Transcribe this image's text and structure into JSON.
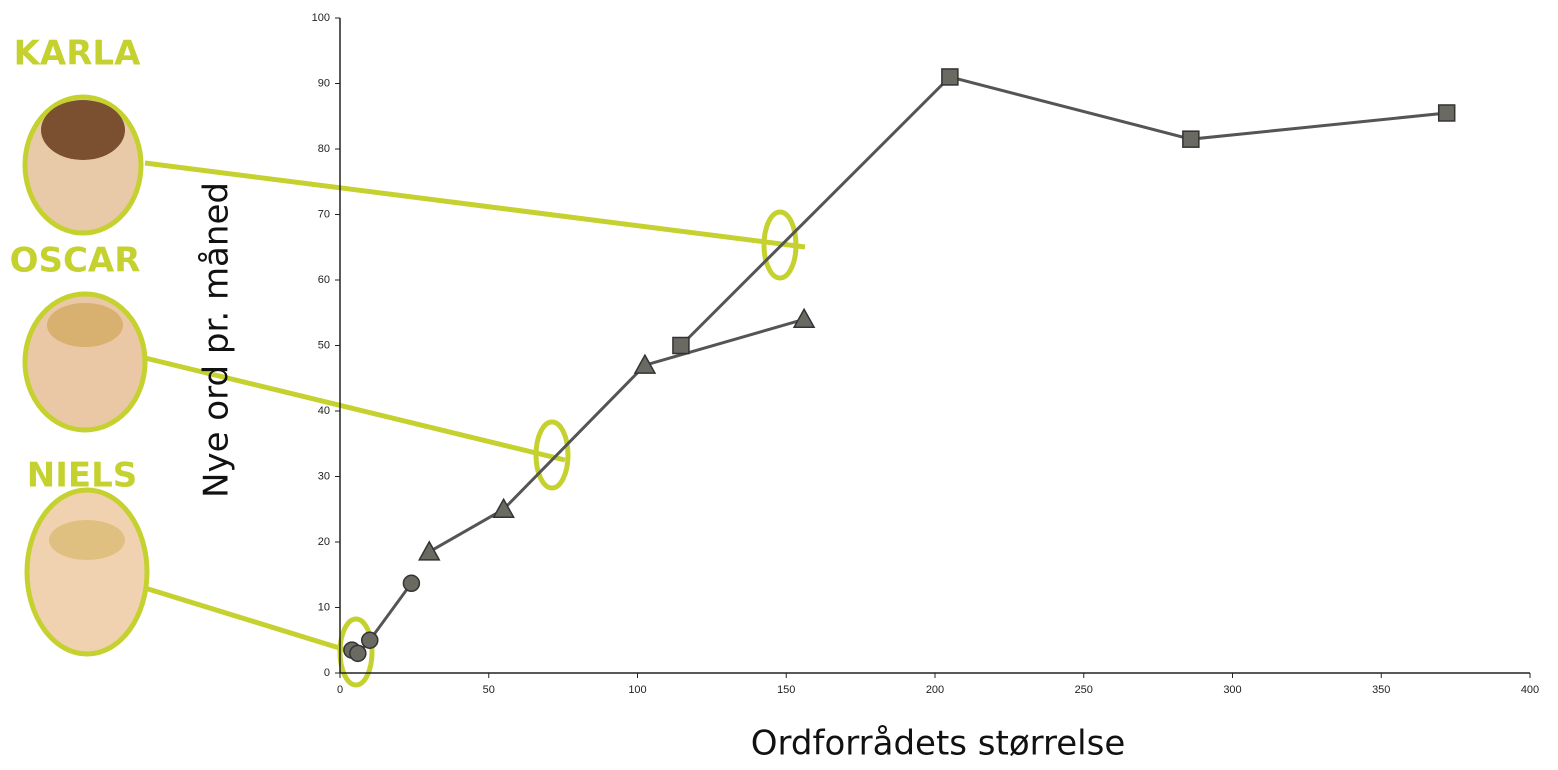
{
  "chart_data": {
    "type": "line",
    "x_label": "Ordforrådets størrelse",
    "y_label": "Nye ord pr. måned",
    "xlim": [
      0,
      400
    ],
    "xticks": [
      0,
      50,
      100,
      150,
      200,
      250,
      300,
      350,
      400
    ],
    "ylim": [
      0,
      100
    ],
    "yticks": [
      0,
      10,
      20,
      30,
      40,
      50,
      60,
      70,
      80,
      90,
      100
    ],
    "series": [
      {
        "name": "NIELS",
        "color": "#555555",
        "marker": "circle",
        "x": [
          4,
          6,
          10,
          24
        ],
        "values": [
          3.5,
          3,
          5,
          13.7
        ]
      },
      {
        "name": "OSCAR",
        "color": "#555555",
        "marker": "triangle",
        "x": [
          30,
          55,
          102.5,
          156
        ],
        "values": [
          18.5,
          25,
          47,
          54
        ]
      },
      {
        "name": "KARLA",
        "color": "#555555",
        "marker": "square",
        "x": [
          114.6,
          205,
          286,
          372
        ],
        "values": [
          50,
          91,
          81.5,
          85.5
        ]
      }
    ]
  }
}
